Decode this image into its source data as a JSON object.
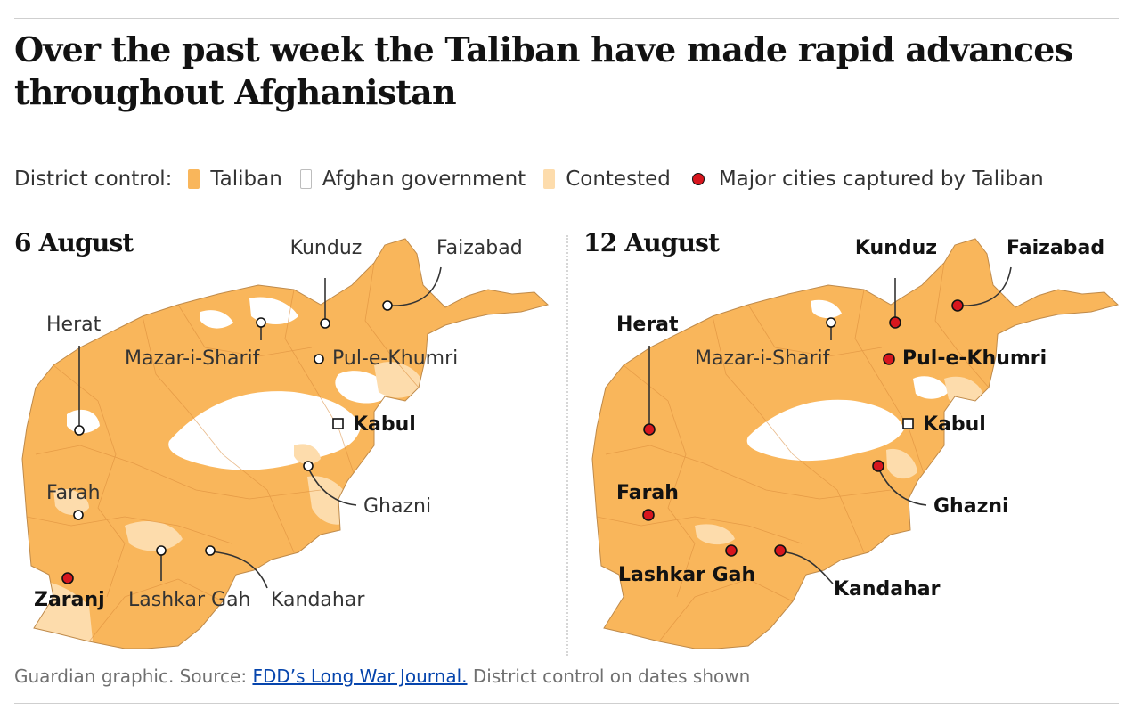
{
  "title": "Over the past week the Taliban have made rapid advances throughout Afghanistan",
  "legend": {
    "lead": "District control:",
    "items": [
      {
        "label": "Taliban",
        "color": "#f9b65b"
      },
      {
        "label": "Afghan government",
        "color": "#ffffff"
      },
      {
        "label": "Contested",
        "color": "#fddcac"
      }
    ],
    "marker_label": "Major cities captured by Taliban",
    "marker_color": "#d7161e"
  },
  "panels": [
    {
      "date": "6 August",
      "cities": {
        "kunduz": {
          "name": "Kunduz",
          "captured": false
        },
        "faizabad": {
          "name": "Faizabad",
          "captured": false
        },
        "herat": {
          "name": "Herat",
          "captured": false
        },
        "mazar": {
          "name": "Mazar-i-Sharif",
          "captured": false
        },
        "pulekhumri": {
          "name": "Pul-e-Khumri",
          "captured": false
        },
        "kabul": {
          "name": "Kabul",
          "captured": false,
          "capital": true
        },
        "farah": {
          "name": "Farah",
          "captured": false
        },
        "ghazni": {
          "name": "Ghazni",
          "captured": false
        },
        "zaranj": {
          "name": "Zaranj",
          "captured": true
        },
        "lashkargah": {
          "name": "Lashkar Gah",
          "captured": false
        },
        "kandahar": {
          "name": "Kandahar",
          "captured": false
        }
      }
    },
    {
      "date": "12 August",
      "cities": {
        "kunduz": {
          "name": "Kunduz",
          "captured": true
        },
        "faizabad": {
          "name": "Faizabad",
          "captured": true
        },
        "herat": {
          "name": "Herat",
          "captured": true
        },
        "mazar": {
          "name": "Mazar-i-Sharif",
          "captured": false
        },
        "pulekhumri": {
          "name": "Pul-e-Khumri",
          "captured": true
        },
        "kabul": {
          "name": "Kabul",
          "captured": false,
          "capital": true
        },
        "farah": {
          "name": "Farah",
          "captured": true
        },
        "ghazni": {
          "name": "Ghazni",
          "captured": true
        },
        "lashkargah": {
          "name": "Lashkar Gah",
          "captured": true
        },
        "kandahar": {
          "name": "Kandahar",
          "captured": true
        }
      }
    }
  ],
  "source": {
    "prefix": "Guardian graphic. Source: ",
    "link": "FDD’s Long War Journal.",
    "suffix": " District control on dates shown"
  }
}
